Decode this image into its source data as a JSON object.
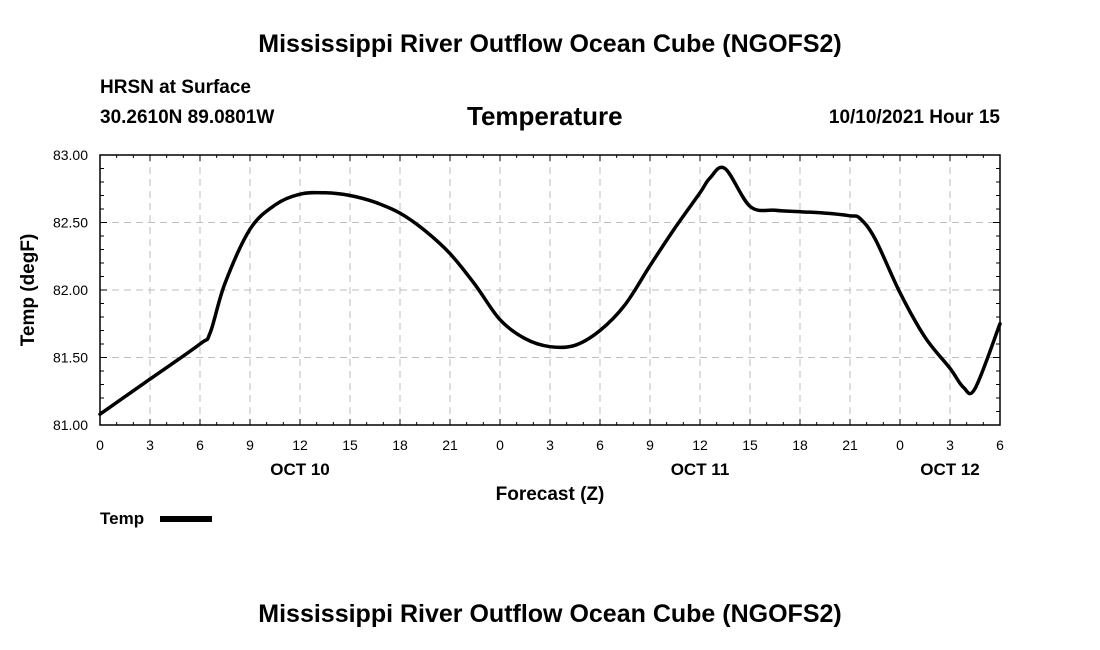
{
  "header": {
    "title": "Mississippi River Outflow Ocean Cube (NGOFS2)",
    "station": "HRSN at Surface",
    "coords": "30.2610N  89.0801W",
    "plot_title": "Temperature",
    "date": "10/10/2021 Hour 15"
  },
  "footer": {
    "title": "Mississippi River Outflow Ocean Cube (NGOFS2)"
  },
  "legend": {
    "label": "Temp"
  },
  "chart_data": {
    "type": "line",
    "title": "Temperature",
    "xlabel": "Forecast (Z)",
    "ylabel": "Temp (degF)",
    "xlim": [
      0,
      54
    ],
    "ylim": [
      81.0,
      83.0
    ],
    "grid": true,
    "legend_position": "bottom-left",
    "x_ticks": [
      0,
      3,
      6,
      9,
      12,
      15,
      18,
      21,
      24,
      27,
      30,
      33,
      36,
      39,
      42,
      45,
      48,
      51,
      54
    ],
    "x_tick_labels": [
      "0",
      "3",
      "6",
      "9",
      "12",
      "15",
      "18",
      "21",
      "0",
      "3",
      "6",
      "9",
      "12",
      "15",
      "18",
      "21",
      "0",
      "3",
      "6"
    ],
    "date_labels": [
      {
        "x": 12,
        "label": "OCT 10"
      },
      {
        "x": 36,
        "label": "OCT 11"
      },
      {
        "x": 51,
        "label": "OCT 12"
      }
    ],
    "y_ticks": [
      81.0,
      81.5,
      82.0,
      82.5,
      83.0
    ],
    "y_tick_labels": [
      "81.00",
      "81.50",
      "82.00",
      "82.50",
      "83.00"
    ],
    "series": [
      {
        "name": "Temp",
        "color": "#000000",
        "x": [
          0,
          3,
          6,
          6.6,
          7.5,
          9,
          10.5,
          12,
          13.5,
          15,
          16.5,
          18,
          19.5,
          21,
          22.5,
          24,
          25.5,
          27,
          28.5,
          30,
          31.5,
          33,
          34.5,
          36,
          36.6,
          37.5,
          39,
          40.5,
          42,
          43.5,
          45,
          45.6,
          46.5,
          48,
          49.5,
          51,
          51.8,
          52.5,
          54
        ],
        "y": [
          81.08,
          81.34,
          81.6,
          81.68,
          82.05,
          82.45,
          82.63,
          82.71,
          82.72,
          82.7,
          82.65,
          82.57,
          82.44,
          82.27,
          82.04,
          81.78,
          81.64,
          81.58,
          81.59,
          81.7,
          81.89,
          82.18,
          82.46,
          82.72,
          82.83,
          82.9,
          82.62,
          82.59,
          82.58,
          82.57,
          82.55,
          82.53,
          82.38,
          81.98,
          81.65,
          81.42,
          81.28,
          81.27,
          81.75
        ]
      }
    ]
  }
}
